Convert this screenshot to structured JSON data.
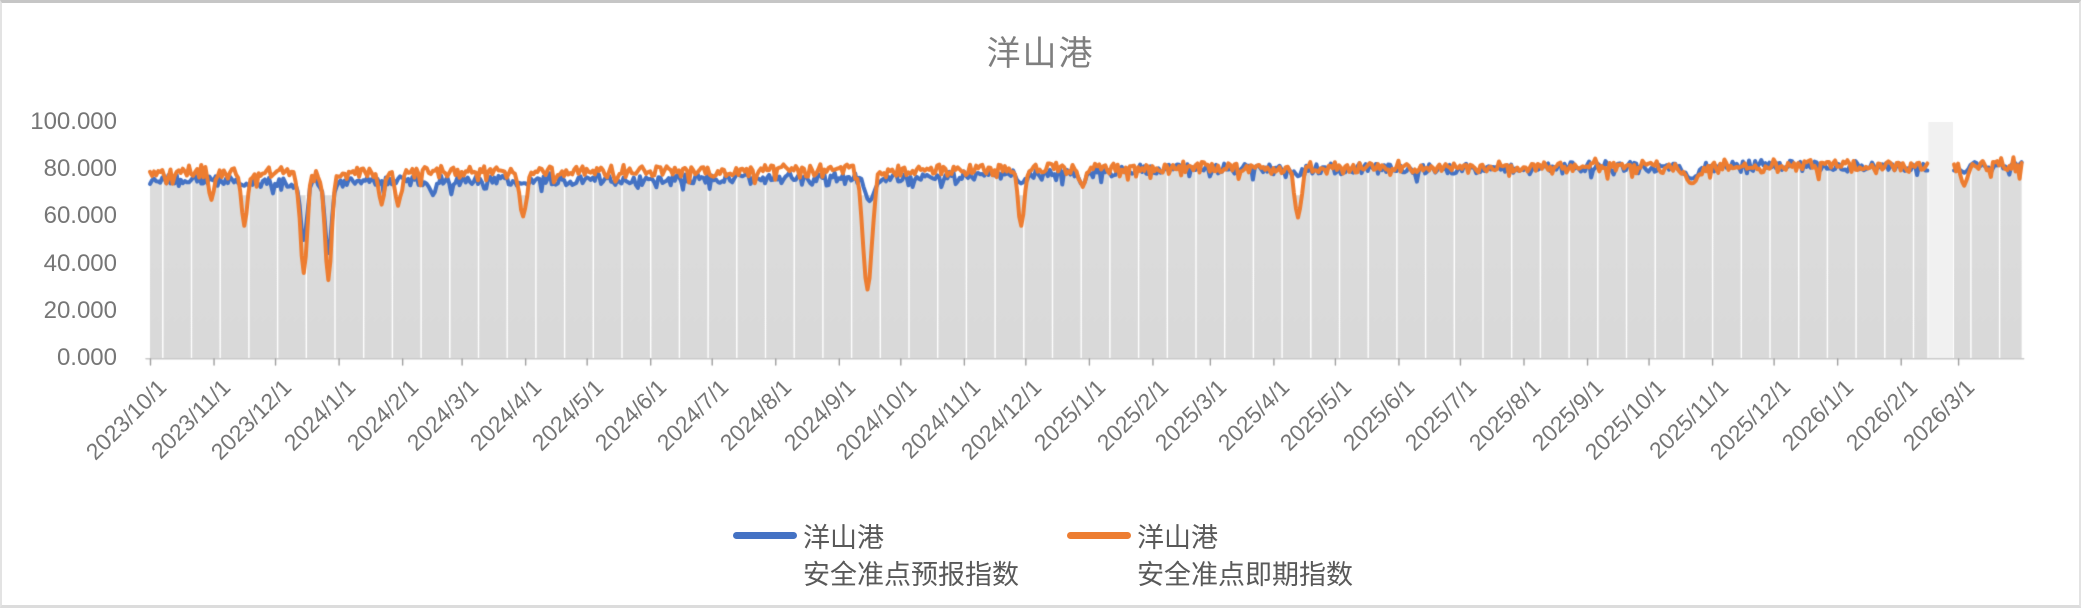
{
  "window": {
    "border_color": "#c6c6c6",
    "background": "#ffffff"
  },
  "chart_data": {
    "type": "line",
    "title": "洋山港",
    "title_color": "#7f7f7f",
    "axis_text_color": "#767676",
    "legend_text_color": "#595959",
    "plot_style": {
      "area_fill_color": "#d9d9d9",
      "area_fill_color_top": "#dedede",
      "gridline_color": "#ffffff",
      "gap_band_color": "#f1f1f1",
      "axis_line_color": "#c9c9c9",
      "tick_mark_color": "#9e9e9e",
      "background_color": "#ffffff"
    },
    "ylim": [
      0,
      100
    ],
    "y_tick_values": [
      0,
      20,
      40,
      60,
      80,
      100
    ],
    "y_tick_labels": [
      "0.000",
      "20.000",
      "40.000",
      "60.000",
      "80.000",
      "100.000"
    ],
    "x_start_date": "2023/10/1",
    "x_range_days": [
      0,
      913
    ],
    "data_gap_days": [
      868,
      879
    ],
    "gridline_interval_days": 14,
    "gridline_phase_day": 6,
    "x_ticks": [
      {
        "label": "2023/10/1",
        "day": 0
      },
      {
        "label": "2023/11/1",
        "day": 31
      },
      {
        "label": "2023/12/1",
        "day": 61
      },
      {
        "label": "2024/1/1",
        "day": 92
      },
      {
        "label": "2024/2/1",
        "day": 123
      },
      {
        "label": "2024/3/1",
        "day": 152
      },
      {
        "label": "2024/4/1",
        "day": 183
      },
      {
        "label": "2024/5/1",
        "day": 213
      },
      {
        "label": "2024/6/1",
        "day": 244
      },
      {
        "label": "2024/7/1",
        "day": 274
      },
      {
        "label": "2024/8/1",
        "day": 305
      },
      {
        "label": "2024/9/1",
        "day": 336
      },
      {
        "label": "2024/10/1",
        "day": 366
      },
      {
        "label": "2024/11/1",
        "day": 397
      },
      {
        "label": "2024/12/1",
        "day": 427
      },
      {
        "label": "2025/1/1",
        "day": 458
      },
      {
        "label": "2025/2/1",
        "day": 489
      },
      {
        "label": "2025/3/1",
        "day": 517
      },
      {
        "label": "2025/4/1",
        "day": 548
      },
      {
        "label": "2025/5/1",
        "day": 578
      },
      {
        "label": "2025/6/1",
        "day": 609
      },
      {
        "label": "2025/7/1",
        "day": 639
      },
      {
        "label": "2025/8/1",
        "day": 670
      },
      {
        "label": "2025/9/1",
        "day": 701
      },
      {
        "label": "2025/10/1",
        "day": 731
      },
      {
        "label": "2025/11/1",
        "day": 762
      },
      {
        "label": "2025/12/1",
        "day": 792
      },
      {
        "label": "2026/1/1",
        "day": 823
      },
      {
        "label": "2026/2/1",
        "day": 854
      },
      {
        "label": "2026/3/1",
        "day": 882
      }
    ],
    "series": [
      {
        "name_line1": "洋山港",
        "name_line2": "安全准点预报指数",
        "color": "#4472C4",
        "seed": 1234,
        "noise_amplitude": 1.9,
        "downspike_probability": 0.12,
        "downspike_magnitude": 4.0,
        "anchors": [
          [
            0,
            75
          ],
          [
            31,
            75.5
          ],
          [
            61,
            74.5
          ],
          [
            92,
            75
          ],
          [
            123,
            75
          ],
          [
            152,
            75.5
          ],
          [
            183,
            75.5
          ],
          [
            213,
            76
          ],
          [
            244,
            75.5
          ],
          [
            274,
            76
          ],
          [
            305,
            76.5
          ],
          [
            336,
            76.5
          ],
          [
            366,
            76
          ],
          [
            397,
            77
          ],
          [
            427,
            77.5
          ],
          [
            458,
            79
          ],
          [
            489,
            80
          ],
          [
            517,
            80.3
          ],
          [
            548,
            80
          ],
          [
            578,
            80
          ],
          [
            609,
            80.3
          ],
          [
            639,
            80
          ],
          [
            670,
            80.5
          ],
          [
            701,
            81
          ],
          [
            731,
            81.3
          ],
          [
            762,
            81
          ],
          [
            792,
            81.3
          ],
          [
            823,
            81
          ],
          [
            854,
            81.3
          ],
          [
            882,
            81.2
          ],
          [
            913,
            81.8
          ]
        ],
        "dips": [
          [
            46,
            73,
            1.4
          ],
          [
            75,
            50,
            1.6
          ],
          [
            87,
            44.5,
            1.6
          ],
          [
            138,
            69,
            1.4
          ],
          [
            182,
            74,
            1.6
          ],
          [
            351,
            66.5,
            2.0
          ],
          [
            425,
            74,
            1.5
          ],
          [
            455,
            73.5,
            1.5
          ],
          [
            560,
            77,
            1.5
          ],
          [
            752,
            76,
            3.0
          ],
          [
            885,
            78.5,
            1.5
          ]
        ]
      },
      {
        "name_line1": "洋山港",
        "name_line2": "安全准点即期指数",
        "color": "#ED7D31",
        "seed": 5678,
        "noise_amplitude": 2.1,
        "downspike_probability": 0.13,
        "downspike_magnitude": 4.5,
        "anchors": [
          [
            0,
            78.5
          ],
          [
            31,
            79
          ],
          [
            61,
            78.5
          ],
          [
            92,
            78
          ],
          [
            123,
            78.5
          ],
          [
            152,
            79
          ],
          [
            183,
            78.5
          ],
          [
            213,
            79
          ],
          [
            244,
            79.5
          ],
          [
            274,
            79
          ],
          [
            305,
            79.5
          ],
          [
            336,
            79.5
          ],
          [
            366,
            79
          ],
          [
            397,
            80
          ],
          [
            427,
            80.5
          ],
          [
            458,
            80.5
          ],
          [
            489,
            81
          ],
          [
            517,
            81
          ],
          [
            548,
            80.5
          ],
          [
            578,
            80.5
          ],
          [
            609,
            81
          ],
          [
            639,
            80.5
          ],
          [
            670,
            81
          ],
          [
            701,
            81.5
          ],
          [
            731,
            81.5
          ],
          [
            762,
            81
          ],
          [
            792,
            81.5
          ],
          [
            823,
            81.5
          ],
          [
            854,
            81.5
          ],
          [
            882,
            82
          ],
          [
            913,
            82.3
          ]
        ],
        "dips": [
          [
            30,
            67,
            1.2
          ],
          [
            46,
            56,
            1.4
          ],
          [
            75,
            36,
            1.6
          ],
          [
            87,
            33,
            1.6
          ],
          [
            113,
            65,
            1.3
          ],
          [
            121,
            64.5,
            1.3
          ],
          [
            182,
            60,
            1.6
          ],
          [
            350,
            29,
            2.2
          ],
          [
            425,
            56,
            1.5
          ],
          [
            455,
            72.5,
            1.5
          ],
          [
            560,
            59.5,
            1.6
          ],
          [
            752,
            74,
            3.0
          ],
          [
            885,
            73,
            1.5
          ]
        ]
      }
    ],
    "area": {
      "follows": "min-of-series",
      "smooth_window": 3,
      "clamp_min": 69
    }
  }
}
